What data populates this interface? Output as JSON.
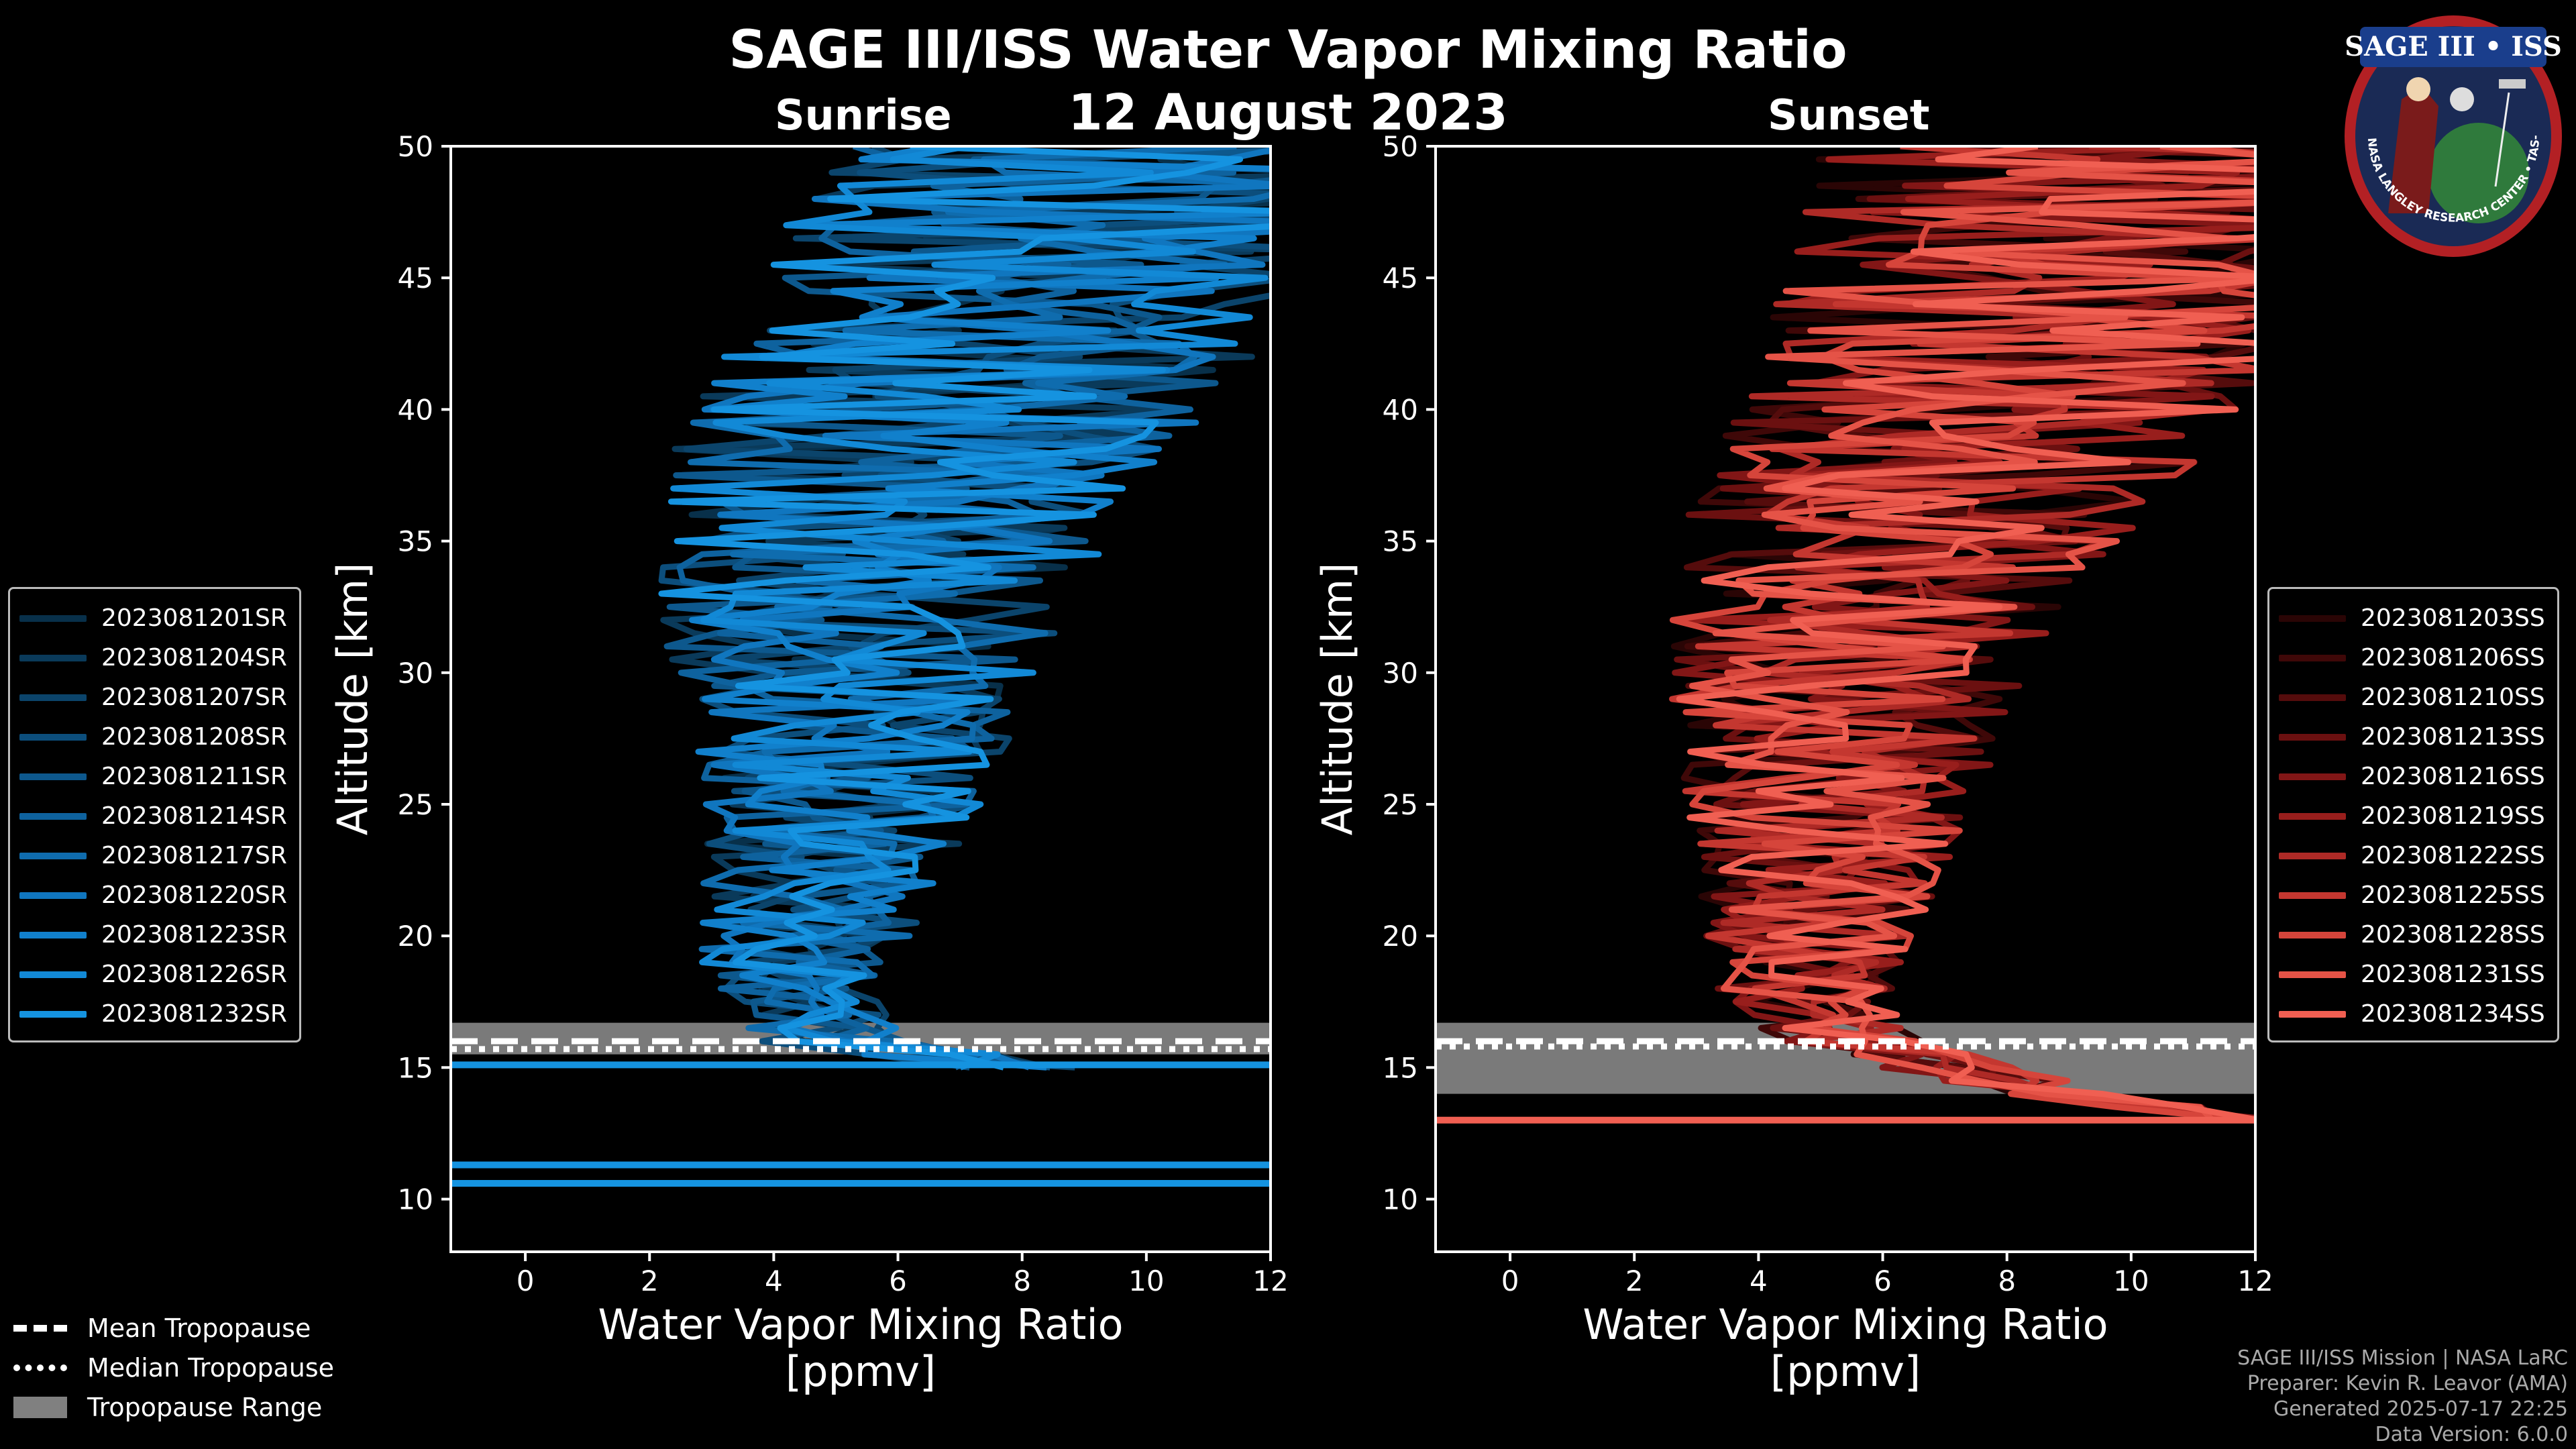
{
  "titles": {
    "main": "SAGE III/ISS Water Vapor Mixing Ratio",
    "date": "12 August 2023",
    "sunrise": "Sunrise",
    "sunset": "Sunset"
  },
  "legend_sunrise": [
    {
      "label": "2023081201SR",
      "color": "#08304a"
    },
    {
      "label": "2023081204SR",
      "color": "#0a3a5a"
    },
    {
      "label": "2023081207SR",
      "color": "#0b446b"
    },
    {
      "label": "2023081208SR",
      "color": "#0c4e7c"
    },
    {
      "label": "2023081211SR",
      "color": "#0d588d"
    },
    {
      "label": "2023081214SR",
      "color": "#0e629e"
    },
    {
      "label": "2023081217SR",
      "color": "#0f6cae"
    },
    {
      "label": "2023081220SR",
      "color": "#1076bf"
    },
    {
      "label": "2023081223SR",
      "color": "#1180cc"
    },
    {
      "label": "2023081226SR",
      "color": "#1289d6"
    },
    {
      "label": "2023081232SR",
      "color": "#1593e0"
    }
  ],
  "legend_sunset": [
    {
      "label": "2023081203SS",
      "color": "#2a0505"
    },
    {
      "label": "2023081206SS",
      "color": "#3f0808"
    },
    {
      "label": "2023081210SS",
      "color": "#550c0c"
    },
    {
      "label": "2023081213SS",
      "color": "#6b1010"
    },
    {
      "label": "2023081216SS",
      "color": "#821616"
    },
    {
      "label": "2023081219SS",
      "color": "#981e1c"
    },
    {
      "label": "2023081222SS",
      "color": "#ae2a26"
    },
    {
      "label": "2023081225SS",
      "color": "#c43730"
    },
    {
      "label": "2023081228SS",
      "color": "#d6453b"
    },
    {
      "label": "2023081231SS",
      "color": "#e55347"
    },
    {
      "label": "2023081234SS",
      "color": "#f05f52"
    }
  ],
  "legend_tropopause": {
    "mean": "Mean Tropopause",
    "median": "Median Tropopause",
    "range": "Tropopause Range"
  },
  "footer": {
    "line1": "SAGE III/ISS Mission | NASA LaRC",
    "line2": "Preparer: Kevin R. Leavor (AMA)",
    "line3": "Generated 2025-07-17 22:25",
    "line4": "Data Version: 6.0.0"
  },
  "logo": {
    "text": "SAGE III • ISS",
    "ring": "BALL • NASA LANGLEY RESEARCH CENTER • TAS-I • ESA"
  },
  "chart_data": [
    {
      "type": "line",
      "panel": "Sunrise",
      "xlabel": "Water Vapor Mixing Ratio\n[ppmv]",
      "ylabel": "Altitude [km]",
      "xlim": [
        -1.2,
        12
      ],
      "ylim": [
        8,
        50
      ],
      "xticks": [
        0,
        2,
        4,
        6,
        8,
        10,
        12
      ],
      "yticks": [
        10,
        15,
        20,
        25,
        30,
        35,
        40,
        45,
        50
      ],
      "tropopause": {
        "mean": 16.0,
        "median": 15.7,
        "range": [
          15.5,
          16.7
        ]
      },
      "median_profile": [
        [
          15,
          8
        ],
        [
          16,
          5
        ],
        [
          17,
          4.5
        ],
        [
          18,
          4.3
        ],
        [
          20,
          4.5
        ],
        [
          22,
          4.7
        ],
        [
          25,
          5.0
        ],
        [
          28,
          5.2
        ],
        [
          30,
          5.3
        ],
        [
          33,
          5.5
        ],
        [
          35,
          5.8
        ],
        [
          38,
          6.3
        ],
        [
          40,
          6.8
        ],
        [
          42,
          7.5
        ],
        [
          44,
          8.2
        ],
        [
          46,
          9.0
        ],
        [
          48,
          9.6
        ],
        [
          50,
          10.2
        ]
      ],
      "extra_lines_km": [
        10.6,
        11.3,
        15.1
      ],
      "series_colors": "legend_sunrise"
    },
    {
      "type": "line",
      "panel": "Sunset",
      "xlabel": "Water Vapor Mixing Ratio\n[ppmv]",
      "ylabel": "Altitude [km]",
      "xlim": [
        -1.2,
        12
      ],
      "ylim": [
        8,
        50
      ],
      "xticks": [
        0,
        2,
        4,
        6,
        8,
        10,
        12
      ],
      "yticks": [
        10,
        15,
        20,
        25,
        30,
        35,
        40,
        45,
        50
      ],
      "tropopause": {
        "mean": 16.0,
        "median": 15.8,
        "range": [
          14.0,
          16.7
        ]
      },
      "median_profile": [
        [
          13,
          12
        ],
        [
          14,
          9
        ],
        [
          15,
          7
        ],
        [
          16,
          5.5
        ],
        [
          17,
          5
        ],
        [
          18,
          4.8
        ],
        [
          20,
          4.8
        ],
        [
          22,
          5.0
        ],
        [
          25,
          5.2
        ],
        [
          28,
          5.3
        ],
        [
          30,
          5.4
        ],
        [
          33,
          5.8
        ],
        [
          35,
          6.3
        ],
        [
          38,
          7.2
        ],
        [
          40,
          7.8
        ],
        [
          42,
          8.5
        ],
        [
          44,
          9.0
        ],
        [
          46,
          9.5
        ],
        [
          48,
          10.0
        ],
        [
          50,
          10.5
        ]
      ],
      "extra_lines_km": [
        13.0
      ],
      "series_colors": "legend_sunset"
    }
  ]
}
